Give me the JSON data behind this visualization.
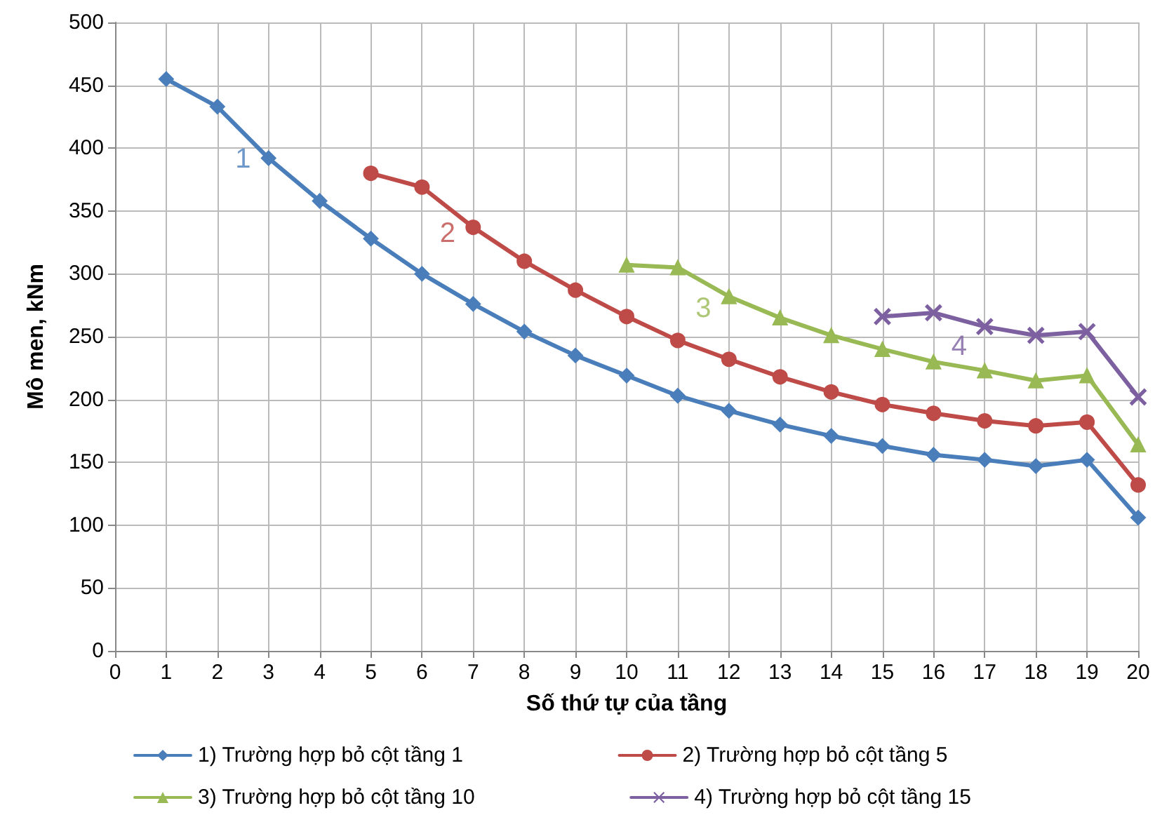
{
  "chart_data": {
    "type": "line",
    "xlabel": "Số thứ tự của tầng",
    "ylabel": "Mô men, kNm",
    "xlim": [
      0,
      20
    ],
    "xticks": [
      0,
      1,
      2,
      3,
      4,
      5,
      6,
      7,
      8,
      9,
      10,
      11,
      12,
      13,
      14,
      15,
      16,
      17,
      18,
      19,
      20
    ],
    "ylim": [
      0,
      500
    ],
    "yticks": [
      0,
      50,
      100,
      150,
      200,
      250,
      300,
      350,
      400,
      450,
      500
    ],
    "grid": true,
    "legend": "bottom",
    "line_style": "solid",
    "series": [
      {
        "name": "1) Trường hợp bỏ cột tầng 1",
        "color": "#4a7ebb",
        "marker": "diamond",
        "x": [
          1,
          2,
          3,
          4,
          5,
          6,
          7,
          8,
          9,
          10,
          11,
          12,
          13,
          14,
          15,
          16,
          17,
          18,
          19,
          20
        ],
        "values": [
          455,
          433,
          392,
          358,
          328,
          300,
          276,
          254,
          235,
          219,
          203,
          191,
          180,
          171,
          163,
          156,
          152,
          147,
          152,
          106
        ]
      },
      {
        "name": "2) Trường hợp bỏ cột tầng 5",
        "color": "#be4b48",
        "marker": "circle",
        "x": [
          5,
          6,
          7,
          8,
          9,
          10,
          11,
          12,
          13,
          14,
          15,
          16,
          17,
          18,
          19,
          20
        ],
        "values": [
          380,
          369,
          337,
          310,
          287,
          266,
          247,
          232,
          218,
          206,
          196,
          189,
          183,
          179,
          182,
          132
        ]
      },
      {
        "name": "3) Trường hợp bỏ cột tầng 10",
        "color": "#98b954",
        "marker": "triangle",
        "x": [
          10,
          11,
          12,
          13,
          14,
          15,
          16,
          17,
          18,
          19,
          20
        ],
        "values": [
          307,
          305,
          282,
          265,
          251,
          240,
          230,
          223,
          215,
          219,
          164
        ]
      },
      {
        "name": "4) Trường hợp bỏ cột tầng 15",
        "color": "#7d60a0",
        "marker": "cross",
        "x": [
          15,
          16,
          17,
          18,
          19,
          20
        ],
        "values": [
          266,
          269,
          258,
          251,
          254,
          202
        ]
      }
    ],
    "annotations": [
      "1",
      "2",
      "3",
      "4"
    ]
  }
}
